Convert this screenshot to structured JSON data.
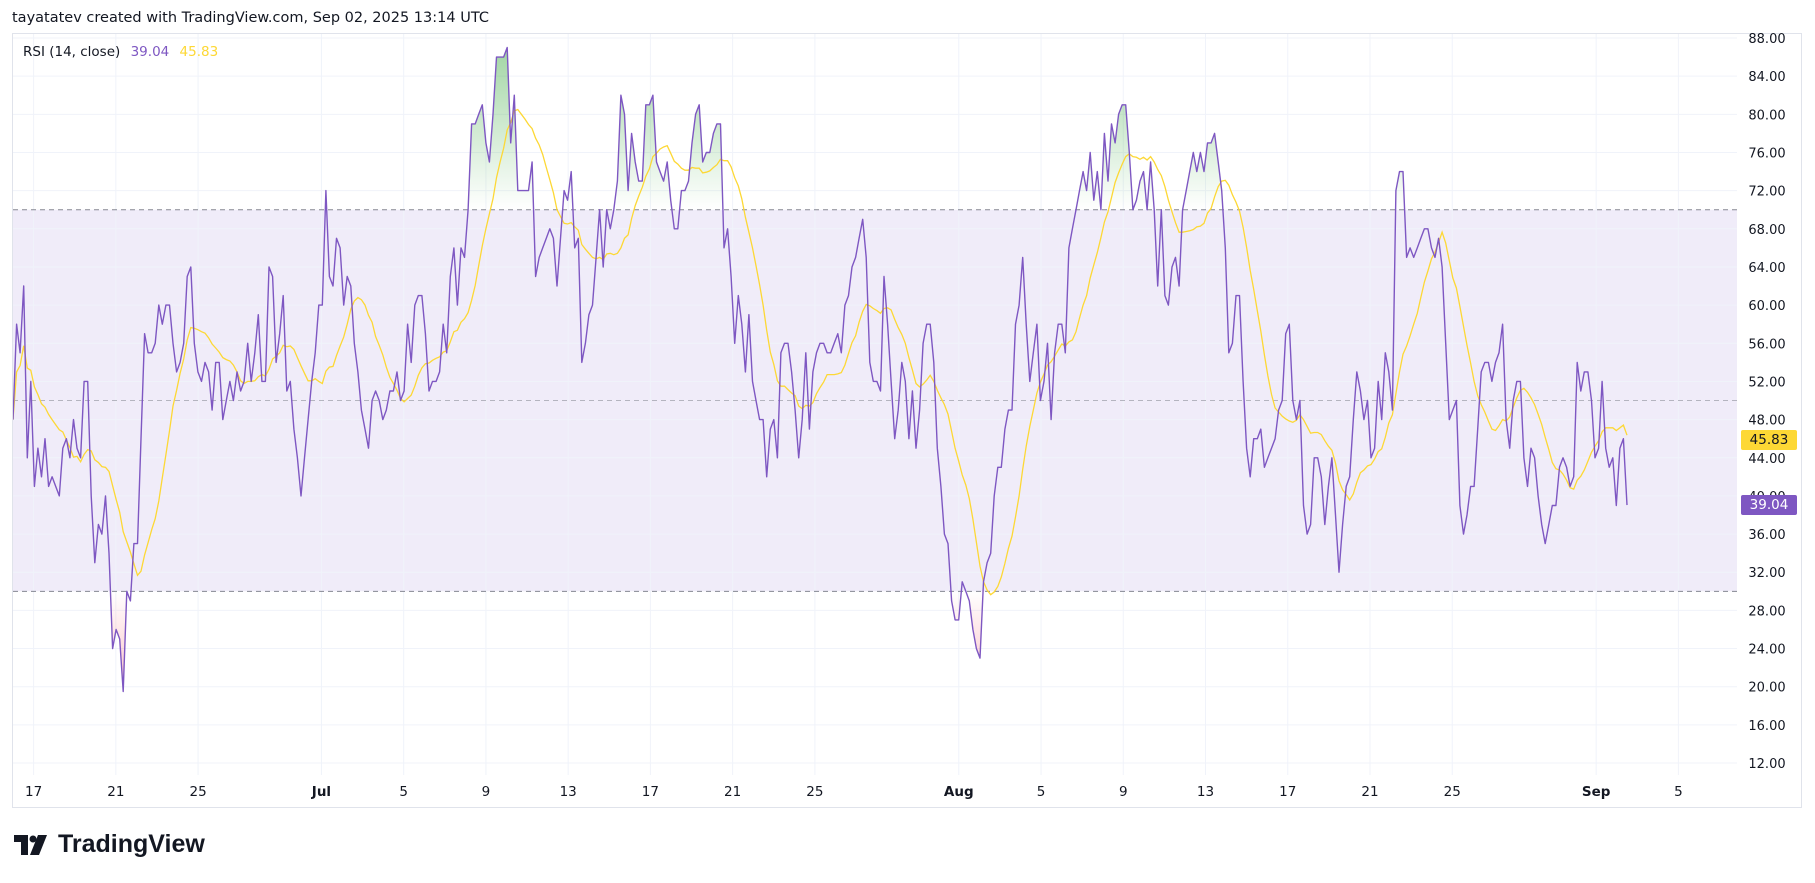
{
  "header": {
    "attribution": "tayatatev created with TradingView.com, Sep 02, 2025 13:14 UTC"
  },
  "legend": {
    "name": "RSI (14, close)",
    "rsi_value": "39.04",
    "ma_value": "45.83"
  },
  "logo": {
    "text": "TradingView"
  },
  "colors": {
    "rsi": "#7e57c2",
    "ma": "#fdd835",
    "band": "#f0ecf9",
    "overbought_fill": "#4caf50",
    "oversold_fill": "#f23645",
    "grid": "#f0f3fa",
    "level_line": "#787b86"
  },
  "chart_data": {
    "type": "line",
    "title": "RSI (14, close)",
    "interval": "4h",
    "first": "2025-06-16 00:00",
    "last": "2025-09-02 12:00",
    "ylim": [
      10,
      89
    ],
    "y_ticks": [
      "88.00",
      "84.00",
      "80.00",
      "76.00",
      "72.00",
      "68.00",
      "64.00",
      "60.00",
      "56.00",
      "52.00",
      "48.00",
      "44.00",
      "40.00",
      "36.00",
      "32.00",
      "28.00",
      "24.00",
      "20.00",
      "16.00",
      "12.00"
    ],
    "x_ticks": [
      {
        "label": "17",
        "date": "2025-06-17",
        "bold": false
      },
      {
        "label": "21",
        "date": "2025-06-21",
        "bold": false
      },
      {
        "label": "25",
        "date": "2025-06-25",
        "bold": false
      },
      {
        "label": "Jul",
        "date": "2025-07-01",
        "bold": true
      },
      {
        "label": "5",
        "date": "2025-07-05",
        "bold": false
      },
      {
        "label": "9",
        "date": "2025-07-09",
        "bold": false
      },
      {
        "label": "13",
        "date": "2025-07-13",
        "bold": false
      },
      {
        "label": "17",
        "date": "2025-07-17",
        "bold": false
      },
      {
        "label": "21",
        "date": "2025-07-21",
        "bold": false
      },
      {
        "label": "25",
        "date": "2025-07-25",
        "bold": false
      },
      {
        "label": "Aug",
        "date": "2025-08-01",
        "bold": true
      },
      {
        "label": "5",
        "date": "2025-08-05",
        "bold": false
      },
      {
        "label": "9",
        "date": "2025-08-09",
        "bold": false
      },
      {
        "label": "13",
        "date": "2025-08-13",
        "bold": false
      },
      {
        "label": "17",
        "date": "2025-08-17",
        "bold": false
      },
      {
        "label": "21",
        "date": "2025-08-21",
        "bold": false
      },
      {
        "label": "25",
        "date": "2025-08-25",
        "bold": false
      },
      {
        "label": "Sep",
        "date": "2025-09-01",
        "bold": true
      },
      {
        "label": "5",
        "date": "2025-09-05",
        "bold": false
      }
    ],
    "levels": {
      "upper": 70,
      "middle": 50,
      "lower": 30
    },
    "grid": true,
    "last_values": {
      "rsi": 39.04,
      "ma": 45.83
    },
    "series": [
      {
        "key": "rsi",
        "values": [
          48,
          58,
          55,
          62,
          44,
          52,
          41,
          45,
          42,
          46,
          41,
          42,
          41,
          40,
          45,
          46,
          44,
          48,
          45,
          44,
          52,
          52,
          40,
          33,
          37,
          36,
          40,
          34,
          24,
          26,
          25,
          19.5,
          30,
          29,
          35,
          35,
          46,
          57,
          55,
          55,
          56,
          60,
          58,
          60,
          60,
          56,
          53,
          54,
          56,
          63,
          64,
          56,
          53,
          52,
          54,
          53,
          49,
          54,
          54,
          48,
          50,
          52,
          50,
          53,
          51,
          52,
          56,
          52,
          55,
          59,
          52,
          52,
          64,
          63,
          54,
          57,
          61,
          51,
          52,
          47,
          44,
          40,
          44,
          48,
          52,
          55,
          60,
          60,
          72,
          63,
          62,
          67,
          66,
          60,
          63,
          62,
          56,
          53,
          49,
          47,
          45,
          50,
          51,
          50,
          48,
          49,
          51,
          51,
          53,
          50,
          51,
          58,
          54,
          60,
          61,
          61,
          57,
          51,
          52,
          52,
          53,
          58,
          55,
          63,
          66,
          60,
          66,
          65,
          70,
          79,
          79,
          80,
          81,
          77,
          75,
          80,
          86,
          86,
          86,
          87,
          77,
          82,
          72,
          72,
          72,
          72,
          75,
          63,
          65,
          66,
          67,
          68,
          67,
          62,
          67,
          72,
          71,
          74,
          66,
          67,
          54,
          56,
          59,
          60,
          65,
          70,
          64,
          70,
          68,
          70,
          73,
          82,
          80,
          72,
          78,
          75,
          73,
          73,
          81,
          81,
          82,
          75,
          74,
          73,
          75,
          71,
          68,
          68,
          72,
          72,
          73,
          77,
          80,
          81,
          75,
          76,
          76,
          78,
          79,
          79,
          66,
          68,
          63,
          56,
          61,
          58,
          53,
          59,
          52,
          50,
          48,
          48,
          42,
          47,
          48,
          44,
          55,
          56,
          56,
          53,
          49,
          44,
          48,
          55,
          47,
          53,
          55,
          56,
          56,
          55,
          55,
          56,
          57,
          55,
          60,
          61,
          64,
          65,
          67,
          69,
          65,
          54,
          52,
          52,
          51,
          63,
          58,
          52,
          46,
          49,
          54,
          52,
          46,
          51,
          45,
          49,
          56,
          58,
          58,
          54,
          45,
          41,
          36,
          35,
          29,
          27,
          27,
          31,
          30,
          29,
          26,
          24,
          23,
          31,
          33,
          34,
          40,
          43,
          43,
          47,
          49,
          49,
          58,
          60,
          65,
          58,
          52,
          55,
          58,
          50,
          52,
          56,
          48,
          55,
          58,
          58,
          55,
          66,
          68,
          70,
          72,
          74,
          72,
          76,
          71,
          74,
          70,
          78,
          73,
          79,
          77,
          80,
          81,
          81,
          76,
          70,
          71,
          73,
          74,
          70,
          75,
          70,
          62,
          70,
          61,
          60,
          64,
          65,
          62,
          70,
          72,
          74,
          76,
          74,
          76,
          74,
          77,
          77,
          78,
          75,
          72,
          66,
          55,
          56,
          61,
          61,
          52,
          45,
          42,
          46,
          46,
          47,
          43,
          44,
          45,
          46,
          49,
          50,
          57,
          58,
          50,
          48,
          50,
          39,
          36,
          37,
          44,
          44,
          42,
          37,
          41,
          44,
          38,
          32,
          37,
          41,
          42,
          48,
          53,
          51,
          48,
          50,
          44,
          45,
          52,
          48,
          55,
          53,
          49,
          72,
          74,
          74,
          65,
          66,
          65,
          66,
          67,
          68,
          68,
          66,
          65,
          67,
          64,
          56,
          48,
          49,
          50,
          39,
          36,
          38,
          41,
          41,
          47,
          53,
          54,
          54,
          52,
          54,
          55,
          58,
          48,
          45,
          50,
          52,
          52,
          44,
          41,
          45,
          44,
          40,
          37,
          35,
          37,
          39,
          39,
          43,
          44,
          43,
          41,
          42,
          54,
          51,
          53,
          53,
          50,
          44,
          45,
          52,
          45,
          43,
          44,
          39,
          45,
          46,
          39.04
        ]
      },
      {
        "key": "ma",
        "ma_of": "rsi",
        "length": 14
      }
    ]
  }
}
